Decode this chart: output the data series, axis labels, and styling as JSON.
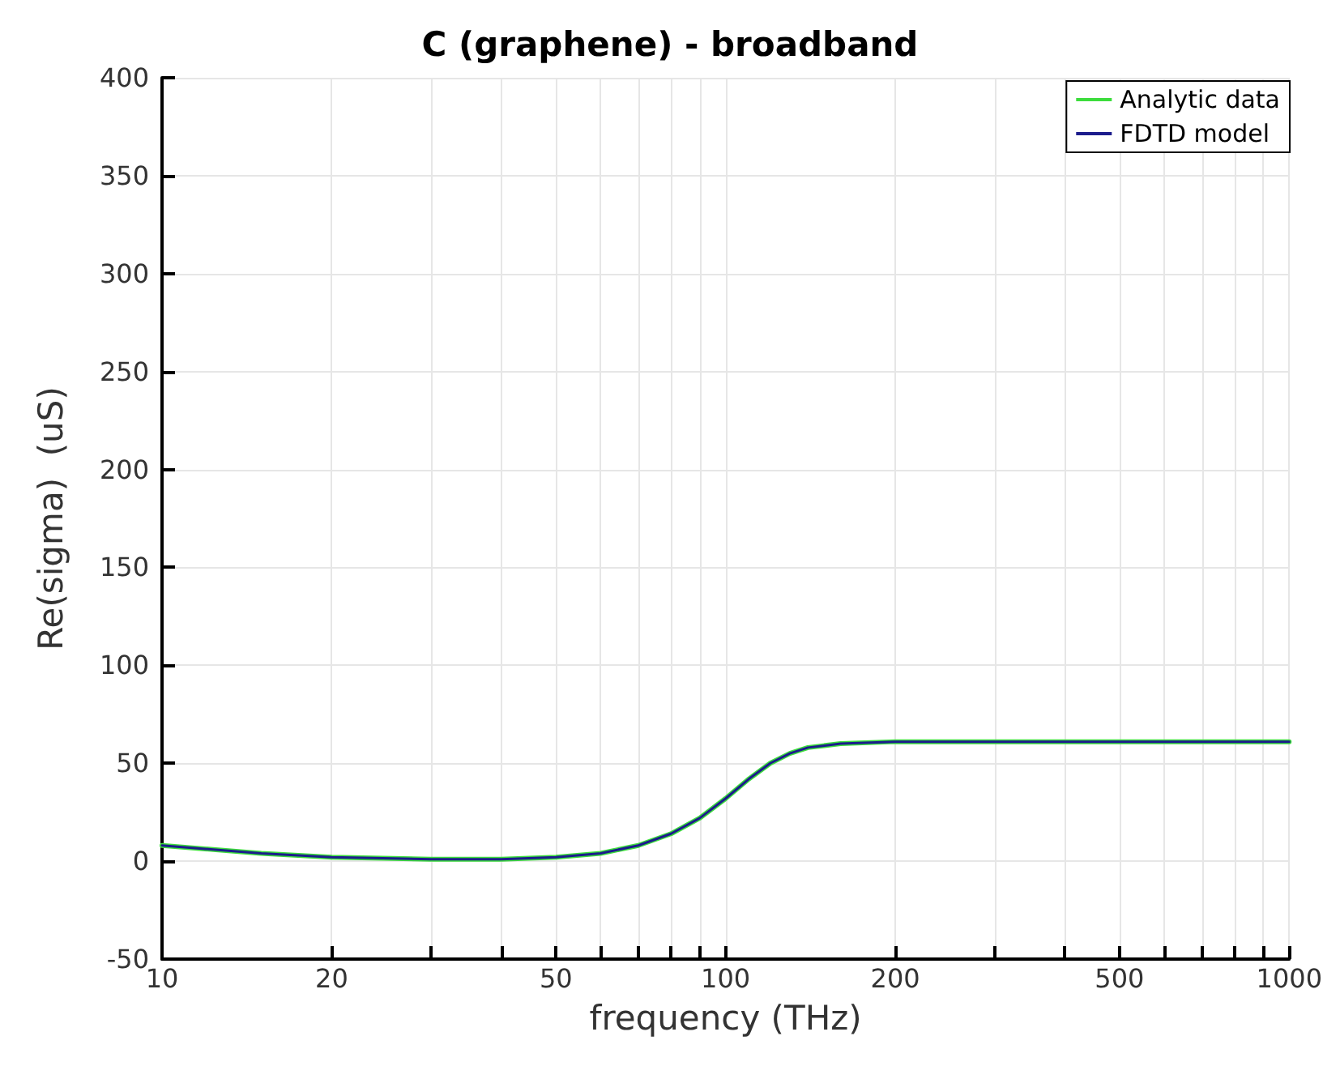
{
  "chart_data": {
    "type": "line",
    "title": "C (graphene) - broadband",
    "xlabel": "frequency (THz)",
    "ylabel": "Re(sigma)  (uS)",
    "log": "x",
    "xlim": [
      10,
      1000
    ],
    "xticks": [
      10,
      20,
      {
        "value": 30,
        "label": null
      },
      {
        "value": 40,
        "label": null
      },
      50,
      {
        "value": 60,
        "label": null
      },
      {
        "value": 70,
        "label": null
      },
      {
        "value": 80,
        "label": null
      },
      {
        "value": 90,
        "label": null
      },
      100,
      200,
      {
        "value": 300,
        "label": null
      },
      {
        "value": 400,
        "label": null
      },
      500,
      {
        "value": 600,
        "label": null
      },
      {
        "value": 700,
        "label": null
      },
      {
        "value": 800,
        "label": null
      },
      {
        "value": 900,
        "label": null
      },
      1000
    ],
    "ylim": [
      -50,
      400
    ],
    "yticks": [
      -50,
      0,
      50,
      100,
      150,
      200,
      250,
      300,
      350,
      400
    ],
    "grid": true,
    "legend": "top right",
    "x": [
      10,
      15,
      20,
      30,
      40,
      50,
      60,
      70,
      80,
      90,
      100,
      110,
      120,
      130,
      140,
      160,
      200,
      300,
      500,
      1000
    ],
    "series": [
      {
        "name": "Analytic data",
        "color": "#3ddc3d",
        "values": [
          8,
          4,
          2,
          1,
          1,
          2,
          4,
          8,
          14,
          22,
          32,
          42,
          50,
          55,
          58,
          60,
          61,
          61,
          61,
          61
        ]
      },
      {
        "name": "FDTD model",
        "color": "#1c1c8c",
        "values": [
          8,
          4,
          2,
          1,
          1,
          2,
          4,
          8,
          14,
          22,
          32,
          42,
          50,
          55,
          58,
          60,
          61,
          61,
          61,
          61
        ]
      }
    ]
  }
}
